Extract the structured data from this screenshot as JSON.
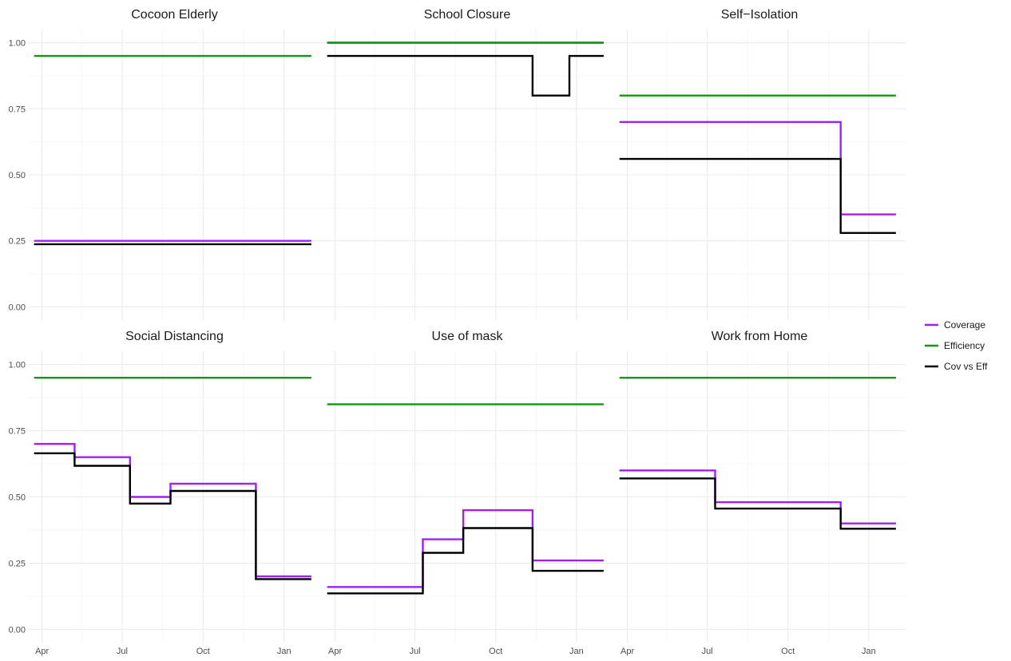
{
  "chart_data": {
    "type": "line",
    "subtype": "step",
    "facets": [
      "Cocoon Elderly",
      "School Closure",
      "Self−Isolation",
      "Social Distancing",
      "Use of mask",
      "Work from Home"
    ],
    "legend": {
      "position": "right",
      "entries": [
        {
          "name": "Coverage",
          "color": "#a020f0"
        },
        {
          "name": "Efficiency",
          "color": "#0e990e"
        },
        {
          "name": "Cov vs Eff",
          "color": "#000000"
        }
      ]
    },
    "x_axis": {
      "type": "date",
      "range": [
        "2020-03-16",
        "2021-02-12"
      ],
      "ticks": [
        {
          "date": "2020-04-01",
          "label": "Apr"
        },
        {
          "date": "2020-07-01",
          "label": "Jul"
        },
        {
          "date": "2020-10-01",
          "label": "Oct"
        },
        {
          "date": "2021-01-01",
          "label": "Jan"
        }
      ],
      "minor_ticks": [
        "2020-05-16",
        "2020-08-16",
        "2020-11-16"
      ]
    },
    "y_axis": {
      "range": [
        -0.05,
        1.05
      ],
      "ticks": [
        0,
        0.25,
        0.5,
        0.75,
        1
      ],
      "tick_labels": [
        "0.00",
        "0.25",
        "0.50",
        "0.75",
        "1.00"
      ]
    },
    "grid": true,
    "panels": [
      {
        "title": "Cocoon Elderly",
        "series": [
          {
            "name": "Coverage",
            "steps": [
              {
                "start": "2020-03-23",
                "value": 0.25
              },
              {
                "end": "2021-02-01"
              }
            ]
          },
          {
            "name": "Efficiency",
            "steps": [
              {
                "start": "2020-03-23",
                "value": 0.95
              },
              {
                "end": "2021-02-01"
              }
            ]
          },
          {
            "name": "Cov vs Eff",
            "steps": [
              {
                "start": "2020-03-23",
                "value": 0.2375
              },
              {
                "end": "2021-02-01"
              }
            ]
          }
        ]
      },
      {
        "title": "School Closure",
        "series": [
          {
            "name": "Coverage",
            "steps": [
              {
                "start": "2020-03-23",
                "value": 1.0
              },
              {
                "end": "2021-02-01"
              }
            ]
          },
          {
            "name": "Efficiency",
            "steps": [
              {
                "start": "2020-03-23",
                "value": 1.0
              },
              {
                "end": "2021-02-01"
              }
            ]
          },
          {
            "name": "Cov vs Eff",
            "steps": [
              {
                "start": "2020-03-23",
                "value": 0.95
              },
              {
                "start": "2020-11-12",
                "value": 0.8
              },
              {
                "start": "2020-12-24",
                "value": 0.95
              },
              {
                "end": "2021-02-01"
              }
            ]
          }
        ]
      },
      {
        "title": "Self−Isolation",
        "series": [
          {
            "name": "Coverage",
            "steps": [
              {
                "start": "2020-03-23",
                "value": 0.7
              },
              {
                "start": "2020-11-30",
                "value": 0.35
              },
              {
                "end": "2021-02-01"
              }
            ]
          },
          {
            "name": "Efficiency",
            "steps": [
              {
                "start": "2020-03-23",
                "value": 0.8
              },
              {
                "end": "2021-02-01"
              }
            ]
          },
          {
            "name": "Cov vs Eff",
            "steps": [
              {
                "start": "2020-03-23",
                "value": 0.56
              },
              {
                "start": "2020-11-30",
                "value": 0.28
              },
              {
                "end": "2021-02-01"
              }
            ]
          }
        ]
      },
      {
        "title": "Social Distancing",
        "series": [
          {
            "name": "Coverage",
            "steps": [
              {
                "start": "2020-03-23",
                "value": 0.7
              },
              {
                "start": "2020-05-08",
                "value": 0.65
              },
              {
                "start": "2020-07-10",
                "value": 0.5
              },
              {
                "start": "2020-08-25",
                "value": 0.55
              },
              {
                "start": "2020-11-30",
                "value": 0.2
              },
              {
                "end": "2021-02-01"
              }
            ]
          },
          {
            "name": "Efficiency",
            "steps": [
              {
                "start": "2020-03-23",
                "value": 0.95
              },
              {
                "end": "2021-02-01"
              }
            ]
          },
          {
            "name": "Cov vs Eff",
            "steps": [
              {
                "start": "2020-03-23",
                "value": 0.665
              },
              {
                "start": "2020-05-08",
                "value": 0.6175
              },
              {
                "start": "2020-07-10",
                "value": 0.475
              },
              {
                "start": "2020-08-25",
                "value": 0.5225
              },
              {
                "start": "2020-11-30",
                "value": 0.19
              },
              {
                "end": "2021-02-01"
              }
            ]
          }
        ]
      },
      {
        "title": "Use of mask",
        "series": [
          {
            "name": "Coverage",
            "steps": [
              {
                "start": "2020-03-23",
                "value": 0.16
              },
              {
                "start": "2020-07-10",
                "value": 0.34
              },
              {
                "start": "2020-08-25",
                "value": 0.45
              },
              {
                "start": "2020-11-12",
                "value": 0.26
              },
              {
                "end": "2021-02-01"
              }
            ]
          },
          {
            "name": "Efficiency",
            "steps": [
              {
                "start": "2020-03-23",
                "value": 0.85
              },
              {
                "end": "2021-02-01"
              }
            ]
          },
          {
            "name": "Cov vs Eff",
            "steps": [
              {
                "start": "2020-03-23",
                "value": 0.136
              },
              {
                "start": "2020-07-10",
                "value": 0.289
              },
              {
                "start": "2020-08-25",
                "value": 0.3825
              },
              {
                "start": "2020-11-12",
                "value": 0.221
              },
              {
                "end": "2021-02-01"
              }
            ]
          }
        ]
      },
      {
        "title": "Work from Home",
        "series": [
          {
            "name": "Coverage",
            "steps": [
              {
                "start": "2020-03-23",
                "value": 0.6
              },
              {
                "start": "2020-07-10",
                "value": 0.48
              },
              {
                "start": "2020-11-30",
                "value": 0.4
              },
              {
                "end": "2021-02-01"
              }
            ]
          },
          {
            "name": "Efficiency",
            "steps": [
              {
                "start": "2020-03-23",
                "value": 0.95
              },
              {
                "end": "2021-02-01"
              }
            ]
          },
          {
            "name": "Cov vs Eff",
            "steps": [
              {
                "start": "2020-03-23",
                "value": 0.57
              },
              {
                "start": "2020-07-10",
                "value": 0.456
              },
              {
                "start": "2020-11-30",
                "value": 0.38
              },
              {
                "end": "2021-02-01"
              }
            ]
          }
        ]
      }
    ]
  }
}
